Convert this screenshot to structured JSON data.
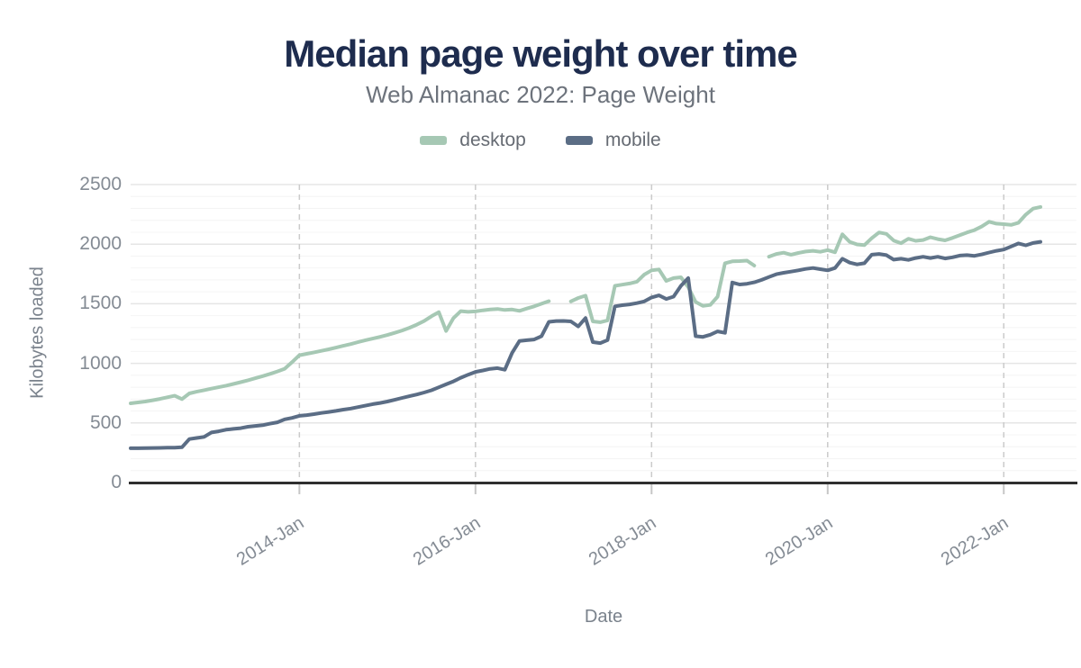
{
  "title": "Median page weight over time",
  "subtitle": "Web Almanac 2022: Page Weight",
  "legend": [
    {
      "label": "desktop",
      "color": "#a6c8b4"
    },
    {
      "label": "mobile",
      "color": "#5b6d85"
    }
  ],
  "style": {
    "title_color": "#1e2c4e",
    "subtitle_color": "#6d737c",
    "tick_label_color": "#848b94",
    "axis_title_color": "#7a828c",
    "axis_line_color": "#2f2f2f",
    "major_grid_color": "#e5e5e5",
    "minor_grid_color": "#f4f4f4",
    "vertical_grid_color": "#cbcbcb",
    "background": "#ffffff"
  },
  "chart_data": {
    "type": "line",
    "title": "Median page weight over time",
    "subtitle": "Web Almanac 2022: Page Weight",
    "xlabel": "Date",
    "ylabel": "Kilobytes loaded",
    "ylim": [
      0,
      2500
    ],
    "yticks": [
      0,
      500,
      1000,
      1500,
      2000,
      2500
    ],
    "ytick_minor_step": 100,
    "xticks": [
      "2014-Jan",
      "2016-Jan",
      "2018-Jan",
      "2020-Jan",
      "2022-Jan"
    ],
    "legend_position": "top",
    "grid": "horizontal major+minor, dashed vertical at Jan of even years",
    "x_months": [
      "2012-Feb",
      "2012-Mar",
      "2012-Apr",
      "2012-May",
      "2012-Jun",
      "2012-Jul",
      "2012-Aug",
      "2012-Sep",
      "2012-Oct",
      "2012-Nov",
      "2012-Dec",
      "2013-Jan",
      "2013-Feb",
      "2013-Mar",
      "2013-Apr",
      "2013-May",
      "2013-Jun",
      "2013-Jul",
      "2013-Aug",
      "2013-Sep",
      "2013-Oct",
      "2013-Nov",
      "2013-Dec",
      "2014-Jan",
      "2014-Feb",
      "2014-Mar",
      "2014-Apr",
      "2014-May",
      "2014-Jun",
      "2014-Jul",
      "2014-Aug",
      "2014-Sep",
      "2014-Oct",
      "2014-Nov",
      "2014-Dec",
      "2015-Jan",
      "2015-Feb",
      "2015-Mar",
      "2015-Apr",
      "2015-May",
      "2015-Jun",
      "2015-Jul",
      "2015-Aug",
      "2015-Sep",
      "2015-Oct",
      "2015-Nov",
      "2015-Dec",
      "2016-Jan",
      "2016-Feb",
      "2016-Mar",
      "2016-Apr",
      "2016-May",
      "2016-Jun",
      "2016-Jul",
      "2016-Aug",
      "2016-Sep",
      "2016-Oct",
      "2016-Nov",
      "2016-Dec",
      "2017-Jan",
      "2017-Feb",
      "2017-Mar",
      "2017-Apr",
      "2017-May",
      "2017-Jun",
      "2017-Jul",
      "2017-Aug",
      "2017-Sep",
      "2017-Oct",
      "2017-Nov",
      "2017-Dec",
      "2018-Jan",
      "2018-Feb",
      "2018-Mar",
      "2018-Apr",
      "2018-May",
      "2018-Jun",
      "2018-Jul",
      "2018-Aug",
      "2018-Sep",
      "2018-Oct",
      "2018-Nov",
      "2018-Dec",
      "2019-Jan",
      "2019-Feb",
      "2019-Mar",
      "2019-Apr",
      "2019-May",
      "2019-Jun",
      "2019-Jul",
      "2019-Aug",
      "2019-Sep",
      "2019-Oct",
      "2019-Nov",
      "2019-Dec",
      "2020-Jan",
      "2020-Feb",
      "2020-Mar",
      "2020-Apr",
      "2020-May",
      "2020-Jun",
      "2020-Jul",
      "2020-Aug",
      "2020-Sep",
      "2020-Oct",
      "2020-Nov",
      "2020-Dec",
      "2021-Jan",
      "2021-Feb",
      "2021-Mar",
      "2021-Apr",
      "2021-May",
      "2021-Jun",
      "2021-Jul",
      "2021-Aug",
      "2021-Sep",
      "2021-Oct",
      "2021-Nov",
      "2021-Dec",
      "2022-Jan",
      "2022-Feb",
      "2022-Mar",
      "2022-Apr",
      "2022-May",
      "2022-Jun"
    ],
    "series": [
      {
        "name": "desktop",
        "color": "#a6c8b4",
        "values": [
          665,
          672,
          680,
          690,
          702,
          715,
          728,
          700,
          748,
          762,
          775,
          788,
          800,
          813,
          827,
          842,
          858,
          875,
          893,
          912,
          932,
          955,
          1010,
          1068,
          1080,
          1092,
          1105,
          1118,
          1132,
          1147,
          1162,
          1178,
          1194,
          1208,
          1222,
          1238,
          1256,
          1276,
          1298,
          1325,
          1355,
          1395,
          1430,
          1272,
          1380,
          1438,
          1432,
          1436,
          1445,
          1452,
          1456,
          1448,
          1452,
          1440,
          1460,
          1478,
          1500,
          1522,
          null,
          null,
          1520,
          1548,
          1568,
          1352,
          1345,
          1360,
          1650,
          1660,
          1670,
          1685,
          1745,
          1780,
          1788,
          1692,
          1715,
          1722,
          1640,
          1515,
          1482,
          1490,
          1560,
          1840,
          1856,
          1858,
          1862,
          1820,
          null,
          1895,
          1918,
          1928,
          1912,
          1926,
          1938,
          1944,
          1936,
          1950,
          1932,
          2082,
          2020,
          1998,
          1992,
          2050,
          2098,
          2086,
          2030,
          2008,
          2045,
          2028,
          2035,
          2058,
          2042,
          2032,
          2052,
          2075,
          2098,
          2118,
          2148,
          2188,
          2172,
          2168,
          2162,
          2180,
          2248,
          2298,
          2312
        ]
      },
      {
        "name": "mobile",
        "color": "#5b6d85",
        "values": [
          288,
          288,
          289,
          290,
          291,
          292,
          293,
          296,
          365,
          374,
          383,
          420,
          430,
          443,
          450,
          456,
          468,
          475,
          481,
          494,
          505,
          530,
          542,
          560,
          566,
          574,
          584,
          592,
          601,
          612,
          621,
          633,
          645,
          658,
          668,
          680,
          694,
          710,
          724,
          739,
          755,
          774,
          799,
          824,
          849,
          879,
          905,
          928,
          940,
          954,
          960,
          946,
          1088,
          1188,
          1194,
          1200,
          1228,
          1348,
          1355,
          1356,
          1352,
          1310,
          1380,
          1178,
          1170,
          1195,
          1478,
          1488,
          1495,
          1505,
          1520,
          1553,
          1570,
          1540,
          1560,
          1650,
          1715,
          1228,
          1222,
          1240,
          1268,
          1256,
          1678,
          1662,
          1668,
          1680,
          1700,
          1724,
          1748,
          1760,
          1770,
          1780,
          1792,
          1800,
          1790,
          1780,
          1800,
          1878,
          1845,
          1830,
          1840,
          1912,
          1918,
          1908,
          1870,
          1878,
          1868,
          1884,
          1894,
          1884,
          1894,
          1880,
          1890,
          1904,
          1908,
          1902,
          1914,
          1930,
          1944,
          1955,
          1980,
          2006,
          1990,
          2010,
          2020
        ]
      }
    ]
  }
}
